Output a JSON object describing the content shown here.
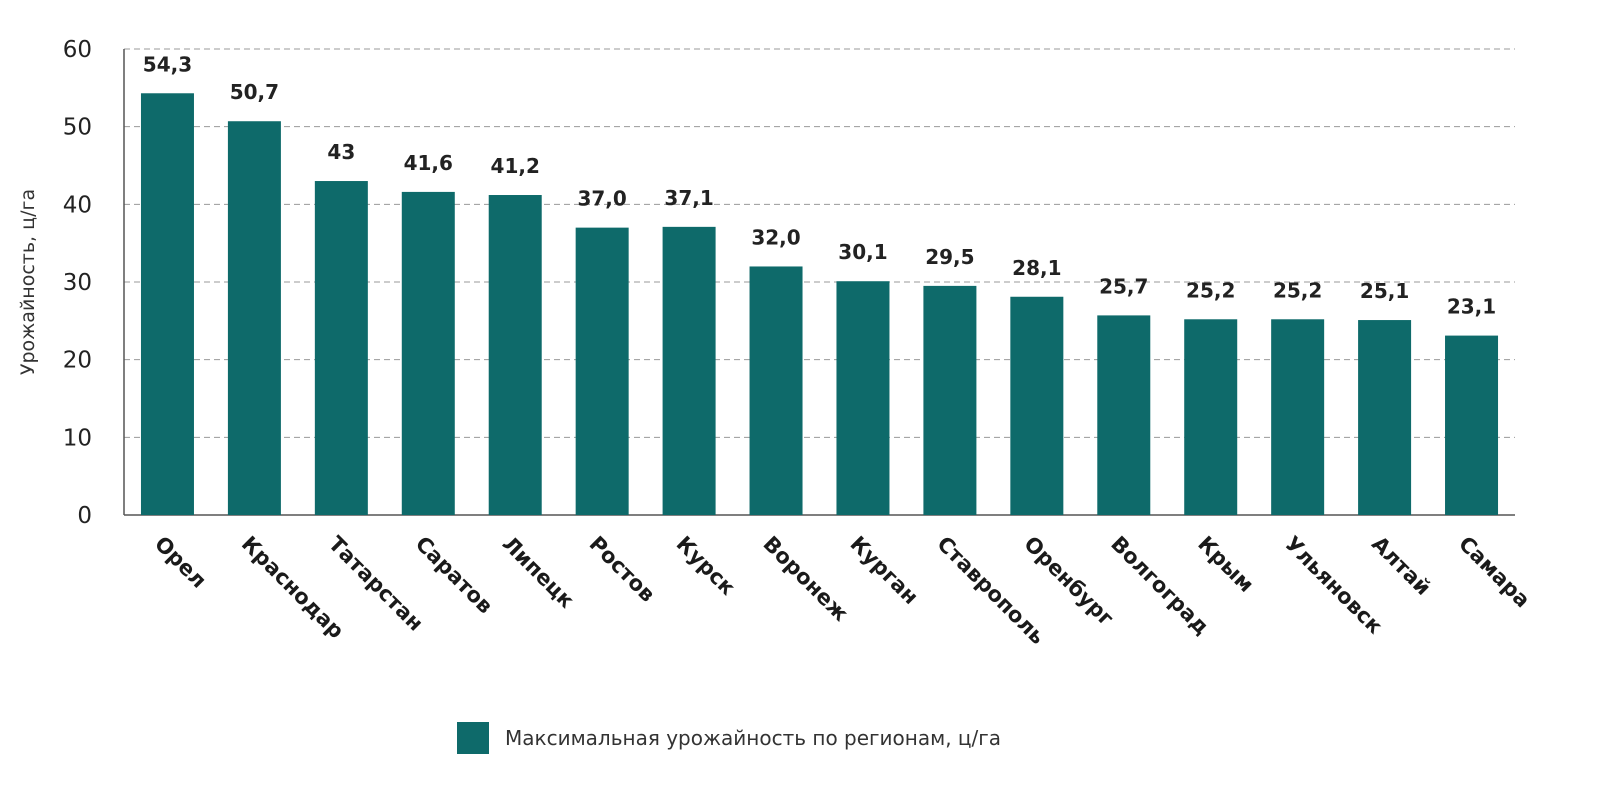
{
  "chart_data": {
    "type": "bar",
    "categories": [
      "Орел",
      "Краснодар",
      "Татарстан",
      "Саратов",
      "Липецк",
      "Ростов",
      "Курск",
      "Воронеж",
      "Курган",
      "Ставрополь",
      "Оренбург",
      "Волгоград",
      "Крым",
      "Ульяновск",
      "Алтай",
      "Самара"
    ],
    "values": [
      54.3,
      50.7,
      43,
      41.6,
      41.2,
      37.0,
      37.1,
      32.0,
      30.1,
      29.5,
      28.1,
      25.7,
      25.2,
      25.2,
      25.1,
      23.1
    ],
    "value_labels": [
      "54,3",
      "50,7",
      "43",
      "41,6",
      "41,2",
      "37,0",
      "37,1",
      "32,0",
      "30,1",
      "29,5",
      "28,1",
      "25,7",
      "25,2",
      "25,2",
      "25,1",
      "23,1"
    ],
    "title": "",
    "xlabel": "",
    "ylabel": "Урожайность, ц/га",
    "ylim": [
      0,
      60
    ],
    "yticks": [
      0,
      10,
      20,
      30,
      40,
      50,
      60
    ],
    "grid": true,
    "legend_position": "bottom-center",
    "series": [
      {
        "name": "Максимальная урожайность по регионам, ц/га",
        "color": "#0e6a6a"
      }
    ]
  }
}
